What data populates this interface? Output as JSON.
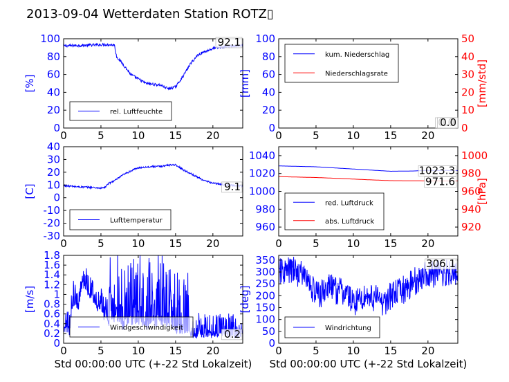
{
  "title": "2013-09-04 Wetterdaten Station ROTZ▯",
  "colors": {
    "left": "#0000ff",
    "right": "#ff0000",
    "axes": "#000000"
  },
  "chart_data": [
    {
      "type": "line",
      "panel": "top-left",
      "ylabel": "[%]",
      "xlim": [
        0,
        24
      ],
      "ylim": [
        0,
        100
      ],
      "xticks": [
        0,
        5,
        10,
        15,
        20
      ],
      "yticks": [
        0,
        20,
        40,
        60,
        80,
        100
      ],
      "series": [
        {
          "name": "rel. Luftfeuchte",
          "color": "#0000ff",
          "noise": 1.5,
          "points": [
            [
              0,
              92
            ],
            [
              2,
              92.5
            ],
            [
              4,
              93
            ],
            [
              5.5,
              93.5
            ],
            [
              6.8,
              93
            ],
            [
              7.1,
              80
            ],
            [
              8,
              71
            ],
            [
              9,
              60
            ],
            [
              10,
              55
            ],
            [
              11,
              50
            ],
            [
              12,
              49
            ],
            [
              13,
              48
            ],
            [
              14,
              44
            ],
            [
              15,
              46
            ],
            [
              16,
              58
            ],
            [
              17,
              72
            ],
            [
              18,
              82
            ],
            [
              19,
              86
            ],
            [
              20,
              89
            ],
            [
              21,
              90.5
            ],
            [
              22,
              91.5
            ],
            [
              24,
              92.1
            ]
          ]
        }
      ],
      "legend": "lower-center",
      "last_value_label": "92.1"
    },
    {
      "type": "line",
      "panel": "top-right",
      "ylabel": "[mm]",
      "ylabel_right": "[mm/std]",
      "xlim": [
        0,
        24
      ],
      "ylim": [
        0,
        100
      ],
      "ylim_right": [
        0,
        50
      ],
      "xticks": [
        0,
        5,
        10,
        15,
        20
      ],
      "yticks": [
        0,
        20,
        40,
        60,
        80,
        100
      ],
      "yticks_right": [
        0,
        10,
        20,
        30,
        40,
        50
      ],
      "series": [
        {
          "name": "kum. Niederschlag",
          "color": "#0000ff",
          "axis": "left",
          "noise": 0,
          "points": [
            [
              0,
              0
            ],
            [
              24,
              0
            ]
          ]
        },
        {
          "name": "Niederschlagsrate",
          "color": "#ff0000",
          "axis": "right",
          "noise": 0,
          "points": [
            [
              0,
              0
            ],
            [
              24,
              0
            ]
          ]
        }
      ],
      "legend": "upper-left",
      "last_value_labels": [
        "0.0",
        "0.0"
      ]
    },
    {
      "type": "line",
      "panel": "middle-left",
      "ylabel": "[C]",
      "xlim": [
        0,
        24
      ],
      "ylim": [
        -30,
        40
      ],
      "xticks": [
        0,
        5,
        10,
        15,
        20
      ],
      "yticks": [
        -30,
        -20,
        -10,
        0,
        10,
        20,
        30,
        40
      ],
      "series": [
        {
          "name": "Lufttemperatur",
          "color": "#0000ff",
          "noise": 0.7,
          "points": [
            [
              0,
              9.5
            ],
            [
              2,
              8.5
            ],
            [
              4,
              8
            ],
            [
              5,
              7.5
            ],
            [
              5.5,
              8
            ],
            [
              6,
              11
            ],
            [
              7,
              14
            ],
            [
              8,
              18
            ],
            [
              9,
              21
            ],
            [
              10,
              23.5
            ],
            [
              11,
              24
            ],
            [
              12,
              24.5
            ],
            [
              13,
              24.5
            ],
            [
              14,
              25.5
            ],
            [
              14.8,
              26
            ],
            [
              15.5,
              24
            ],
            [
              16,
              22
            ],
            [
              17,
              19
            ],
            [
              18,
              16
            ],
            [
              19,
              13
            ],
            [
              20,
              11.5
            ],
            [
              21,
              10.5
            ],
            [
              22,
              10
            ],
            [
              24,
              9.1
            ]
          ]
        }
      ],
      "legend": "lower-center",
      "last_value_label": "9.1"
    },
    {
      "type": "line",
      "panel": "middle-right",
      "ylabel_right": "[hPa]",
      "xlim": [
        0,
        24
      ],
      "ylim": [
        950,
        1050
      ],
      "ylim_right": [
        910,
        1010
      ],
      "xticks": [
        0,
        5,
        10,
        15,
        20
      ],
      "yticks": [
        960,
        980,
        1000,
        1020,
        1040
      ],
      "yticks_right": [
        920,
        940,
        960,
        980,
        1000
      ],
      "series": [
        {
          "name": "red. Luftdruck",
          "color": "#0000ff",
          "axis": "left",
          "noise": 0,
          "points": [
            [
              0,
              1028.5
            ],
            [
              5,
              1027.5
            ],
            [
              8,
              1026
            ],
            [
              12,
              1024
            ],
            [
              15,
              1022.5
            ],
            [
              18,
              1022.8
            ],
            [
              20,
              1023.5
            ],
            [
              24,
              1023.3
            ]
          ]
        },
        {
          "name": "abs. Luftdruck",
          "color": "#ff0000",
          "axis": "right",
          "noise": 0,
          "points": [
            [
              0,
              976.5
            ],
            [
              5,
              975.5
            ],
            [
              8,
              974.5
            ],
            [
              12,
              973
            ],
            [
              15,
              972
            ],
            [
              18,
              971.8
            ],
            [
              20,
              971.7
            ],
            [
              24,
              971.6
            ]
          ]
        }
      ],
      "legend": "lower-left",
      "last_value_labels": [
        "1023.3",
        "971.6"
      ]
    },
    {
      "type": "line",
      "panel": "bottom-left",
      "ylabel": "[m/s]",
      "xlabel": "Std 00:00:00 UTC (+-22 Std Lokalzeit)",
      "xlim": [
        0,
        24
      ],
      "ylim": [
        0,
        1.8
      ],
      "xticks": [
        0,
        5,
        10,
        15,
        20
      ],
      "yticks": [
        0,
        0.2,
        0.4,
        0.6,
        0.8,
        1.0,
        1.2,
        1.4,
        1.6,
        1.8
      ],
      "series": [
        {
          "name": "Windgeschwindigkeit",
          "color": "#0000ff",
          "noise": 0.35,
          "spiky": true,
          "points": [
            [
              0,
              0.25
            ],
            [
              0.8,
              0.3
            ],
            [
              1.2,
              0.9
            ],
            [
              2,
              0.8
            ],
            [
              2.5,
              1.3
            ],
            [
              3,
              1.1
            ],
            [
              4,
              0.9
            ],
            [
              5,
              0.7
            ],
            [
              6,
              0.45
            ],
            [
              7,
              0.6
            ],
            [
              8,
              0.4
            ],
            [
              9,
              0.5
            ],
            [
              10,
              0.5
            ],
            [
              11,
              0.4
            ],
            [
              12,
              0.45
            ],
            [
              13,
              0.5
            ],
            [
              14,
              0.4
            ],
            [
              15,
              0.35
            ],
            [
              16,
              0.3
            ],
            [
              17,
              0.25
            ],
            [
              18,
              0.2
            ],
            [
              20,
              0.25
            ],
            [
              22,
              0.25
            ],
            [
              24,
              0.2
            ]
          ]
        }
      ],
      "legend": "lower-center",
      "last_value_label": "0.2"
    },
    {
      "type": "line",
      "panel": "bottom-right",
      "ylabel": "[deg]",
      "xlabel": "Std 00:00:00 UTC (+-22 Std Lokalzeit)",
      "xlim": [
        0,
        24
      ],
      "ylim": [
        0,
        370
      ],
      "xticks": [
        0,
        5,
        10,
        15,
        20
      ],
      "yticks": [
        0,
        50,
        100,
        150,
        200,
        250,
        300,
        350
      ],
      "series": [
        {
          "name": "Windrichtung",
          "color": "#0000ff",
          "noise": 60,
          "spiky": false,
          "points": [
            [
              0,
              300
            ],
            [
              2,
              305
            ],
            [
              3.5,
              285
            ],
            [
              4.5,
              230
            ],
            [
              5.5,
              200
            ],
            [
              6.5,
              240
            ],
            [
              8,
              220
            ],
            [
              9,
              210
            ],
            [
              10,
              170
            ],
            [
              11,
              190
            ],
            [
              12,
              200
            ],
            [
              13,
              190
            ],
            [
              14,
              170
            ],
            [
              15,
              200
            ],
            [
              16,
              210
            ],
            [
              17,
              230
            ],
            [
              18,
              255
            ],
            [
              19,
              275
            ],
            [
              20,
              290
            ],
            [
              22,
              295
            ],
            [
              24,
              306
            ]
          ]
        }
      ],
      "legend": "lower-left",
      "last_value_label": "306.1"
    }
  ]
}
